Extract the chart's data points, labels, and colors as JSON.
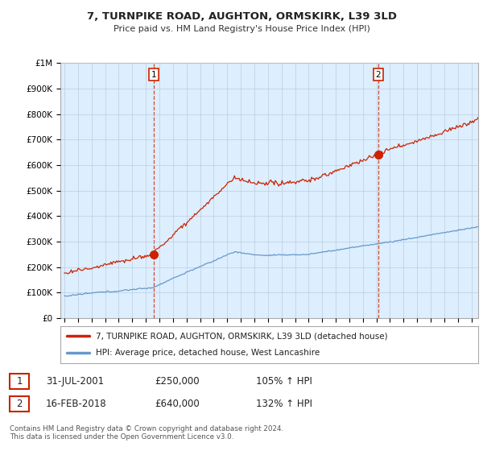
{
  "title": "7, TURNPIKE ROAD, AUGHTON, ORMSKIRK, L39 3LD",
  "subtitle": "Price paid vs. HM Land Registry's House Price Index (HPI)",
  "ylim": [
    0,
    1000000
  ],
  "xlim_start": 1994.7,
  "xlim_end": 2025.5,
  "hpi_color": "#6699cc",
  "price_color": "#cc2200",
  "sale1_x": 2001.58,
  "sale1_y": 250000,
  "sale1_label": "1",
  "sale2_x": 2018.12,
  "sale2_y": 640000,
  "sale2_label": "2",
  "chart_bg": "#ddeeff",
  "legend_line1": "7, TURNPIKE ROAD, AUGHTON, ORMSKIRK, L39 3LD (detached house)",
  "legend_line2": "HPI: Average price, detached house, West Lancashire",
  "table_row1": [
    "1",
    "31-JUL-2001",
    "£250,000",
    "105% ↑ HPI"
  ],
  "table_row2": [
    "2",
    "16-FEB-2018",
    "£640,000",
    "132% ↑ HPI"
  ],
  "footnote": "Contains HM Land Registry data © Crown copyright and database right 2024.\nThis data is licensed under the Open Government Licence v3.0.",
  "background_color": "#ffffff",
  "grid_color": "#bbccdd"
}
